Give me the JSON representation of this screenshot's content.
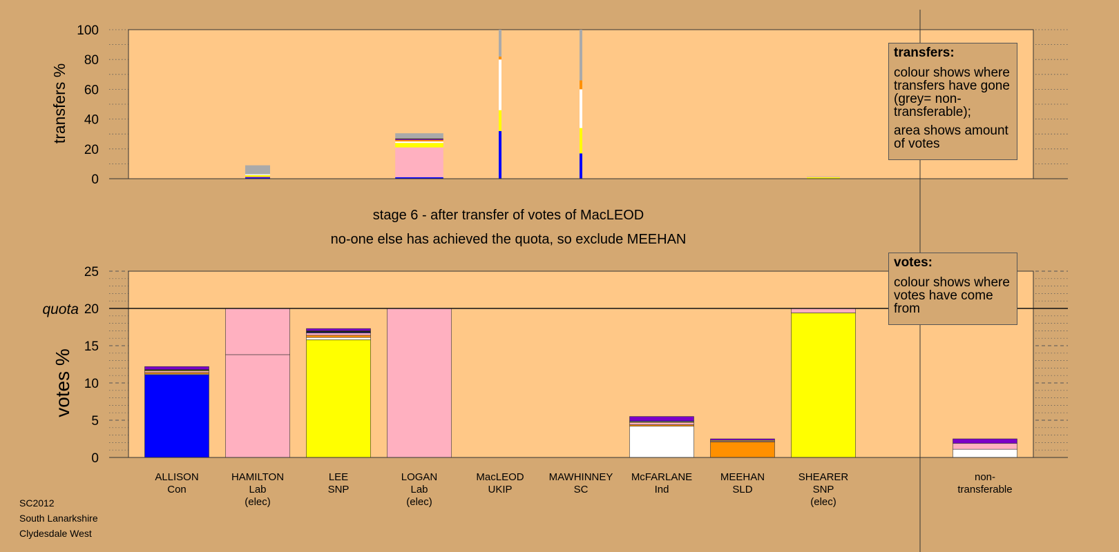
{
  "stage_title": "stage 6 - after transfer of votes of MacLEOD",
  "stage_subtitle": "no-one else has achieved the quota, so exclude MEEHAN",
  "transfers_box": {
    "title": "transfers:",
    "line1": "colour shows where transfers have gone (grey= non-transferable);",
    "line2": "area shows amount of votes"
  },
  "votes_box": {
    "title": "votes:",
    "line1": "colour shows where votes have come from"
  },
  "footer": {
    "line1": "SC2012",
    "line2": "South Lanarkshire",
    "line3": "Clydesdale West"
  },
  "colors": {
    "Con": "#0000FF",
    "Lab": "#FFB0C0",
    "SNP": "#FFFF00",
    "UKIP": "#7B00C8",
    "SC": "#1A1A1A",
    "Ind": "#FFFFFF",
    "SLD": "#FF9000",
    "nontransferable": "#AAAAAA",
    "panel": "#FFC887",
    "background": "#D4A872"
  },
  "chart_data": [
    {
      "type": "bar",
      "title": "",
      "ylabel": "transfers %",
      "ylim": [
        0,
        100
      ],
      "yticks": [
        0,
        20,
        40,
        60,
        80,
        100
      ],
      "categories": [
        "ALLISON",
        "HAMILTON",
        "LEE",
        "LOGAN",
        "MacLEOD",
        "MAWHINNEY",
        "McFARLANE",
        "MEEHAN",
        "SHEARER",
        "non-transferable"
      ],
      "bars": [
        {
          "candidate": "HAMILTON",
          "width_share": 0.6,
          "segments": [
            {
              "party": "Con",
              "value": 0.8
            },
            {
              "party": "UKIP",
              "value": 0.4
            },
            {
              "party": "SNP",
              "value": 1.2
            },
            {
              "party": "Ind",
              "value": 0.6
            },
            {
              "party": "nontransferable",
              "value": 6.0
            }
          ]
        },
        {
          "candidate": "LOGAN",
          "width_share": 1.16,
          "segments": [
            {
              "party": "Con",
              "value": 1.0
            },
            {
              "party": "Lab",
              "value": 20.0
            },
            {
              "party": "SNP",
              "value": 3.0
            },
            {
              "party": "Ind",
              "value": 1.0
            },
            {
              "party": "SLD",
              "value": 1.0
            },
            {
              "party": "UKIP",
              "value": 0.5
            },
            {
              "party": "SC",
              "value": 0.5
            },
            {
              "party": "nontransferable",
              "value": 3.5
            }
          ]
        },
        {
          "candidate": "MacLEOD",
          "width_share": 0.06,
          "segments": [
            {
              "party": "Con",
              "value": 32
            },
            {
              "party": "SNP",
              "value": 14
            },
            {
              "party": "Ind",
              "value": 34
            },
            {
              "party": "SLD",
              "value": 2
            },
            {
              "party": "nontransferable",
              "value": 18
            }
          ]
        },
        {
          "candidate": "MAWHINNEY",
          "width_share": 0.04,
          "segments": [
            {
              "party": "Con",
              "value": 17
            },
            {
              "party": "SNP",
              "value": 17
            },
            {
              "party": "Ind",
              "value": 26
            },
            {
              "party": "SLD",
              "value": 6
            },
            {
              "party": "nontransferable",
              "value": 34
            }
          ]
        },
        {
          "candidate": "SHEARER",
          "width_share": 0.8,
          "segments": [
            {
              "party": "SNP",
              "value": 1.0
            },
            {
              "party": "Lab",
              "value": 0.3
            },
            {
              "party": "nontransferable",
              "value": 0.2
            }
          ]
        }
      ]
    },
    {
      "type": "bar",
      "title": "",
      "ylabel": "votes %",
      "ylim": [
        0,
        25
      ],
      "yticks": [
        0,
        5,
        10,
        15,
        20,
        25
      ],
      "quota": 20,
      "quota_label": "quota",
      "candidates": [
        {
          "name": "ALLISON",
          "party": "Con",
          "elected": "",
          "segments": [
            {
              "party": "Con",
              "value": 11.1
            },
            {
              "party": "Ind",
              "value": 0.1
            },
            {
              "party": "SLD",
              "value": 0.2
            },
            {
              "party": "Lab",
              "value": 0.2
            },
            {
              "party": "SNP",
              "value": 0.1
            },
            {
              "party": "SC",
              "value": 0.1
            },
            {
              "party": "UKIP",
              "value": 0.4
            }
          ]
        },
        {
          "name": "HAMILTON",
          "party": "Lab",
          "elected": "(elec)",
          "segments": [
            {
              "party": "Lab",
              "value": 13.8
            },
            {
              "party": "Lab",
              "value": 6.2
            }
          ]
        },
        {
          "name": "LEE",
          "party": "SNP",
          "elected": "",
          "segments": [
            {
              "party": "SNP",
              "value": 15.8
            },
            {
              "party": "Ind",
              "value": 0.3
            },
            {
              "party": "SLD",
              "value": 0.3
            },
            {
              "party": "Lab",
              "value": 0.3
            },
            {
              "party": "Con",
              "value": 0.1
            },
            {
              "party": "SC",
              "value": 0.2
            },
            {
              "party": "UKIP",
              "value": 0.3
            }
          ]
        },
        {
          "name": "LOGAN",
          "party": "Lab",
          "elected": "(elec)",
          "segments": [
            {
              "party": "Lab",
              "value": 20.0
            }
          ]
        },
        {
          "name": "MacLEOD",
          "party": "UKIP",
          "elected": "",
          "segments": []
        },
        {
          "name": "MAWHINNEY",
          "party": "SC",
          "elected": "",
          "segments": []
        },
        {
          "name": "McFARLANE",
          "party": "Ind",
          "elected": "",
          "segments": [
            {
              "party": "Ind",
              "value": 4.2
            },
            {
              "party": "SLD",
              "value": 0.2
            },
            {
              "party": "Lab",
              "value": 0.3
            },
            {
              "party": "SNP",
              "value": 0.1
            },
            {
              "party": "Con",
              "value": 0.1
            },
            {
              "party": "UKIP",
              "value": 0.6
            }
          ]
        },
        {
          "name": "MEEHAN",
          "party": "SLD",
          "elected": "",
          "segments": [
            {
              "party": "SLD",
              "value": 2.1
            },
            {
              "party": "Lab",
              "value": 0.1
            },
            {
              "party": "SNP",
              "value": 0.1
            },
            {
              "party": "UKIP",
              "value": 0.2
            }
          ]
        },
        {
          "name": "SHEARER",
          "party": "SNP",
          "elected": "(elec)",
          "segments": [
            {
              "party": "SNP",
              "value": 19.4
            },
            {
              "party": "Lab",
              "value": 0.6
            }
          ]
        },
        {
          "name": "non-",
          "party": "transferable",
          "elected": "",
          "segments": [
            {
              "party": "Ind",
              "value": 1.1
            },
            {
              "party": "Lab",
              "value": 0.8
            },
            {
              "party": "UKIP",
              "value": 0.6
            }
          ]
        }
      ]
    }
  ]
}
